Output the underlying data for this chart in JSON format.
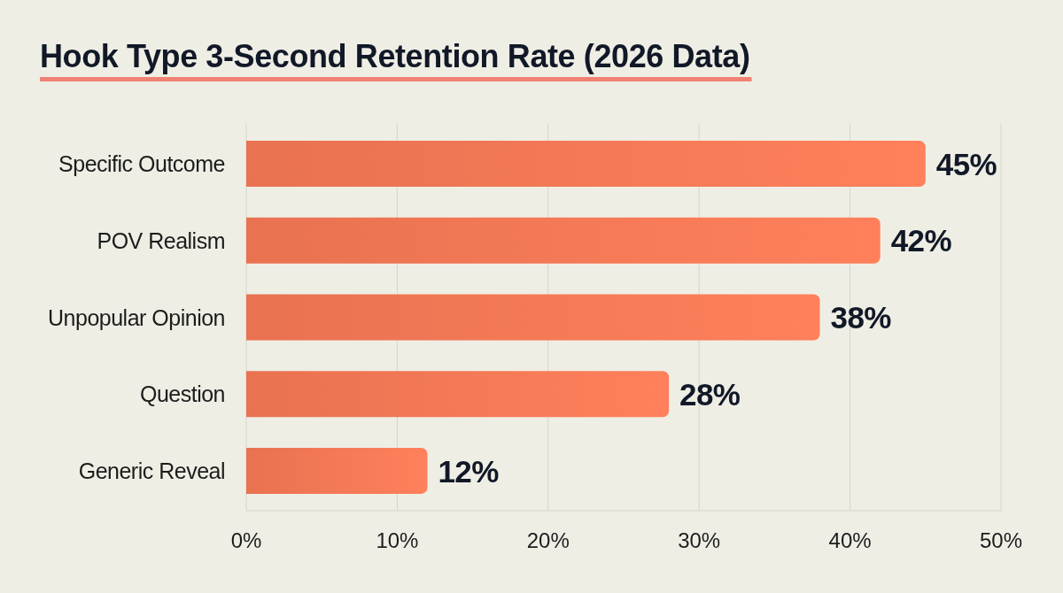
{
  "chart_data": {
    "type": "bar",
    "orientation": "horizontal",
    "title": "Hook Type 3-Second Retention Rate (2026 Data)",
    "categories": [
      "Specific Outcome",
      "POV Realism",
      "Unpopular Opinion",
      "Question",
      "Generic Reveal"
    ],
    "values": [
      45,
      42,
      38,
      28,
      12
    ],
    "value_labels": [
      "45%",
      "42%",
      "38%",
      "28%",
      "12%"
    ],
    "color": "#f07553",
    "xlim": [
      0,
      50
    ],
    "xticks": [
      {
        "value": 0,
        "label": "0%"
      },
      {
        "value": 10,
        "label": "10%"
      },
      {
        "value": 20,
        "label": "20%"
      },
      {
        "value": 30,
        "label": "30%"
      },
      {
        "value": 40,
        "label": "40%"
      },
      {
        "value": 50,
        "label": "50%"
      }
    ],
    "grid": "x"
  }
}
